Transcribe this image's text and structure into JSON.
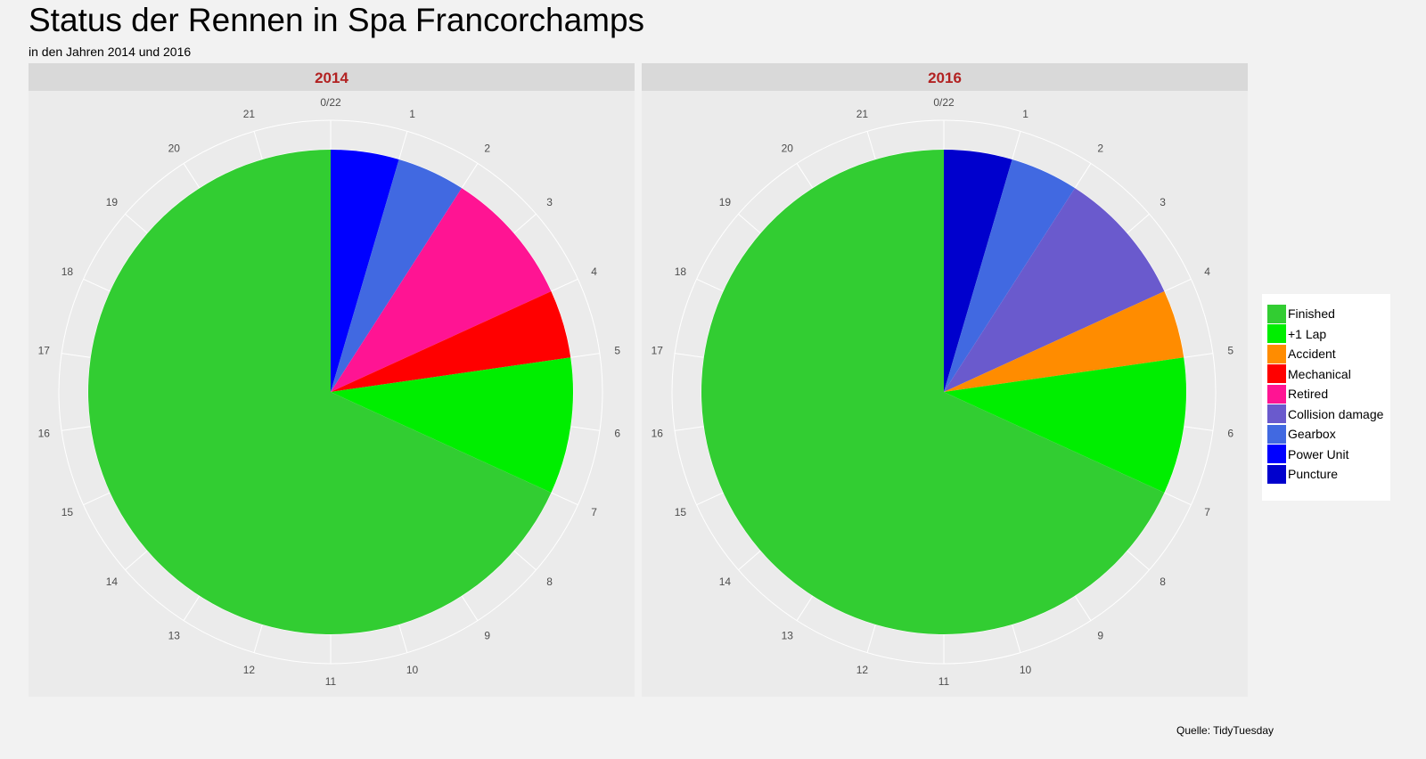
{
  "chart_data": {
    "type": "pie",
    "title": "Status der Rennen in Spa Francorchamps",
    "subtitle": "in den Jahren 2014 und 2016",
    "caption": "Quelle: TidyTuesday",
    "angular_ticks": [
      "0/22",
      "1",
      "2",
      "3",
      "4",
      "5",
      "6",
      "7",
      "8",
      "9",
      "10",
      "11",
      "12",
      "13",
      "14",
      "15",
      "16",
      "17",
      "18",
      "19",
      "20",
      "21"
    ],
    "total": 22,
    "legend": {
      "placement": "right",
      "entries": [
        {
          "name": "Finished",
          "color": "#32cd32"
        },
        {
          "name": "+1 Lap",
          "color": "#00ee00"
        },
        {
          "name": "Accident",
          "color": "#ff8c00"
        },
        {
          "name": "Mechanical",
          "color": "#ff0000"
        },
        {
          "name": "Retired",
          "color": "#ff1493"
        },
        {
          "name": "Collision damage",
          "color": "#6a5acd"
        },
        {
          "name": "Gearbox",
          "color": "#4169e1"
        },
        {
          "name": "Power Unit",
          "color": "#0000ff"
        },
        {
          "name": "Puncture",
          "color": "#0000cd"
        }
      ]
    },
    "panels": [
      {
        "facet": "2014",
        "slices": [
          {
            "status": "Power Unit",
            "value": 1,
            "color": "#0000ff"
          },
          {
            "status": "Gearbox",
            "value": 1,
            "color": "#4169e1"
          },
          {
            "status": "Retired",
            "value": 2,
            "color": "#ff1493"
          },
          {
            "status": "Mechanical",
            "value": 1,
            "color": "#ff0000"
          },
          {
            "status": "+1 Lap",
            "value": 2,
            "color": "#00ee00"
          },
          {
            "status": "Finished",
            "value": 15,
            "color": "#32cd32"
          }
        ]
      },
      {
        "facet": "2016",
        "slices": [
          {
            "status": "Puncture",
            "value": 1,
            "color": "#0000cd"
          },
          {
            "status": "Gearbox",
            "value": 1,
            "color": "#4169e1"
          },
          {
            "status": "Collision damage",
            "value": 2,
            "color": "#6a5acd"
          },
          {
            "status": "Accident",
            "value": 1,
            "color": "#ff8c00"
          },
          {
            "status": "+1 Lap",
            "value": 2,
            "color": "#00ee00"
          },
          {
            "status": "Finished",
            "value": 15,
            "color": "#32cd32"
          }
        ]
      }
    ]
  }
}
